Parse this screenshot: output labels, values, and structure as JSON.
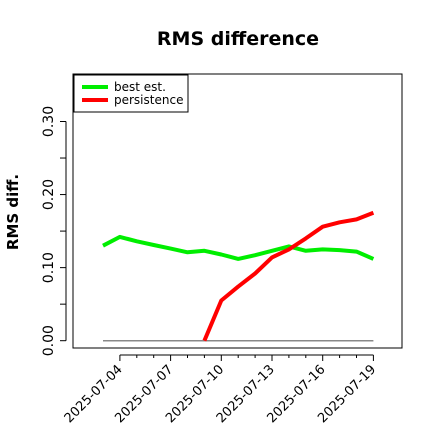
{
  "chart_data": {
    "type": "line",
    "title": "RMS difference",
    "xlabel": "",
    "ylabel": "RMS diff.",
    "ylim": [
      -0.01,
      0.365
    ],
    "grid": false,
    "legend_position": "top-left",
    "x_tick_labels": [
      "2025-07-04",
      "2025-07-07",
      "2025-07-10",
      "2025-07-13",
      "2025-07-16",
      "2025-07-19"
    ],
    "y_ticks": [
      0.0,
      0.1,
      0.2,
      0.3
    ],
    "y_tick_labels": [
      "0.00",
      "0.10",
      "0.20",
      "0.30"
    ],
    "reference_line": {
      "y": 0.0,
      "x_start": "2025-07-03",
      "x_end": "2025-07-19",
      "color": "#888888"
    },
    "series": [
      {
        "name": "best est.",
        "color": "#00ee00",
        "points": [
          [
            "2025-07-03",
            0.13
          ],
          [
            "2025-07-04",
            0.142
          ],
          [
            "2025-07-05",
            0.136
          ],
          [
            "2025-07-06",
            0.131
          ],
          [
            "2025-07-07",
            0.126
          ],
          [
            "2025-07-08",
            0.121
          ],
          [
            "2025-07-09",
            0.123
          ],
          [
            "2025-07-10",
            0.118
          ],
          [
            "2025-07-11",
            0.112
          ],
          [
            "2025-07-12",
            0.117
          ],
          [
            "2025-07-13",
            0.123
          ],
          [
            "2025-07-14",
            0.129
          ],
          [
            "2025-07-15",
            0.123
          ],
          [
            "2025-07-16",
            0.125
          ],
          [
            "2025-07-17",
            0.124
          ],
          [
            "2025-07-18",
            0.122
          ],
          [
            "2025-07-19",
            0.112
          ]
        ]
      },
      {
        "name": "persistence",
        "color": "#ff0000",
        "points": [
          [
            "2025-07-09",
            0.0
          ],
          [
            "2025-07-10",
            0.055
          ],
          [
            "2025-07-11",
            0.074
          ],
          [
            "2025-07-12",
            0.092
          ],
          [
            "2025-07-13",
            0.114
          ],
          [
            "2025-07-14",
            0.125
          ],
          [
            "2025-07-15",
            0.14
          ],
          [
            "2025-07-16",
            0.156
          ],
          [
            "2025-07-17",
            0.162
          ],
          [
            "2025-07-18",
            0.166
          ],
          [
            "2025-07-19",
            0.175
          ]
        ]
      }
    ]
  }
}
